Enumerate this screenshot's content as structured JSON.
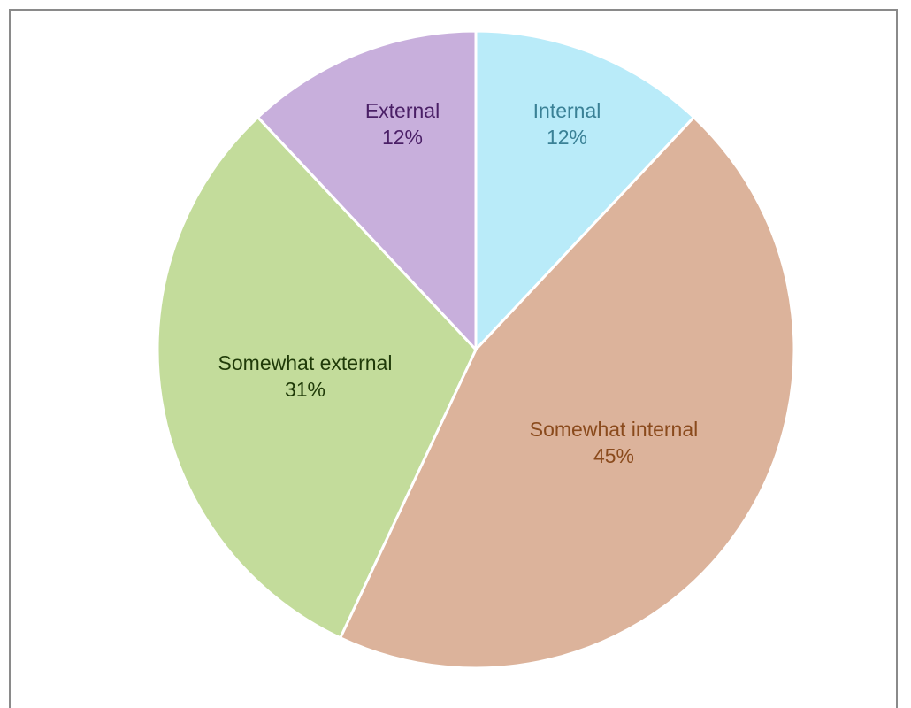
{
  "chart_data": {
    "type": "pie",
    "title": "",
    "slices": [
      {
        "label": "Internal",
        "value": 12,
        "value_label": "12%",
        "color": "#b9ebf9",
        "text_color": "#3a8196"
      },
      {
        "label": "Somewhat internal",
        "value": 45,
        "value_label": "45%",
        "color": "#dcb39b",
        "text_color": "#8a4a1c"
      },
      {
        "label": "Somewhat external",
        "value": 31,
        "value_label": "31%",
        "color": "#c3dc9b",
        "text_color": "#1f3a08"
      },
      {
        "label": "External",
        "value": 12,
        "value_label": "12%",
        "color": "#c8afdc",
        "text_color": "#4a1f66"
      }
    ],
    "start_angle": "12 o'clock",
    "direction": "clockwise",
    "legend": "none",
    "slice_separator_color": "#ffffff"
  }
}
